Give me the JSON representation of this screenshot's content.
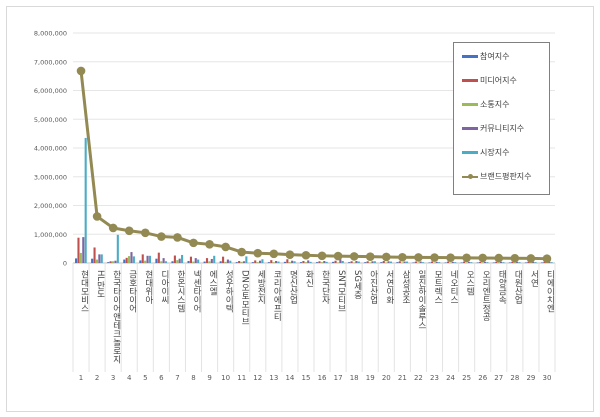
{
  "chart_data": {
    "type": "bar",
    "title": "",
    "xlabel": "",
    "ylabel": "",
    "ylim": [
      0,
      8000000
    ],
    "yticks": [
      "0",
      "1,000,000",
      "2,000,000",
      "3,000,000",
      "4,000,000",
      "5,000,000",
      "6,000,000",
      "7,000,000",
      "8,000,000"
    ],
    "grid": true,
    "legend_position": "top-right",
    "categories": [
      "현대모비스",
      "HL만도",
      "한국타이어앤테크놀로지",
      "금호타이어",
      "현대위아",
      "디아이씨",
      "한온시스템",
      "넥센타이어",
      "에스엘",
      "성우하이텍",
      "DN오토모티브",
      "세방전지",
      "코리아에프티",
      "명신산업",
      "화신",
      "한국단자",
      "SNT모티브",
      "SG세충",
      "아진산업",
      "서연이화",
      "삼성공조",
      "일진하이솔루스",
      "모트렉스",
      "네오티스",
      "오스템",
      "오리엔트정공",
      "태양금속",
      "대원산업",
      "서연",
      "티에이치엔"
    ],
    "ranks": [
      "1",
      "2",
      "3",
      "4",
      "5",
      "6",
      "7",
      "8",
      "9",
      "10",
      "11",
      "12",
      "13",
      "14",
      "15",
      "16",
      "17",
      "18",
      "19",
      "20",
      "21",
      "22",
      "23",
      "24",
      "25",
      "26",
      "27",
      "28",
      "29",
      "30"
    ],
    "series": [
      {
        "name": "참여지수",
        "type": "bar",
        "color": "#4472c4",
        "values": [
          160000,
          150000,
          30000,
          120000,
          90000,
          150000,
          60000,
          70000,
          50000,
          60000,
          30000,
          30000,
          30000,
          40000,
          30000,
          30000,
          40000,
          30000,
          30000,
          30000,
          30000,
          20000,
          20000,
          20000,
          20000,
          20000,
          20000,
          20000,
          20000,
          20000
        ]
      },
      {
        "name": "미디어지수",
        "type": "bar",
        "color": "#c0504d",
        "values": [
          880000,
          540000,
          60000,
          180000,
          300000,
          360000,
          260000,
          220000,
          170000,
          220000,
          70000,
          90000,
          100000,
          130000,
          70000,
          60000,
          80000,
          60000,
          60000,
          70000,
          60000,
          50000,
          50000,
          50000,
          50000,
          40000,
          40000,
          40000,
          40000,
          40000
        ]
      },
      {
        "name": "소통지수",
        "type": "bar",
        "color": "#9bbb59",
        "values": [
          350000,
          120000,
          60000,
          240000,
          80000,
          60000,
          100000,
          50000,
          60000,
          40000,
          40000,
          30000,
          30000,
          30000,
          30000,
          30000,
          20000,
          20000,
          20000,
          20000,
          20000,
          20000,
          20000,
          20000,
          20000,
          20000,
          20000,
          20000,
          20000,
          20000
        ]
      },
      {
        "name": "커뮤니티지수",
        "type": "bar",
        "color": "#8064a2",
        "values": [
          900000,
          300000,
          80000,
          380000,
          250000,
          170000,
          150000,
          170000,
          140000,
          120000,
          60000,
          80000,
          70000,
          80000,
          90000,
          70000,
          130000,
          70000,
          60000,
          60000,
          50000,
          50000,
          40000,
          40000,
          40000,
          40000,
          40000,
          40000,
          40000,
          40000
        ]
      },
      {
        "name": "시장지수",
        "type": "bar",
        "color": "#4bacc6",
        "values": [
          4350000,
          300000,
          980000,
          230000,
          250000,
          60000,
          280000,
          120000,
          250000,
          80000,
          230000,
          130000,
          50000,
          60000,
          40000,
          40000,
          70000,
          50000,
          60000,
          50000,
          50000,
          30000,
          30000,
          30000,
          30000,
          30000,
          30000,
          30000,
          30000,
          30000
        ]
      },
      {
        "name": "브랜드평판지수",
        "type": "line",
        "color": "#938953",
        "values": [
          6680000,
          1620000,
          1220000,
          1120000,
          1050000,
          920000,
          890000,
          700000,
          650000,
          560000,
          380000,
          340000,
          320000,
          290000,
          270000,
          250000,
          240000,
          230000,
          220000,
          210000,
          200000,
          195000,
          190000,
          185000,
          180000,
          175000,
          170000,
          165000,
          160000,
          150000
        ]
      }
    ]
  }
}
